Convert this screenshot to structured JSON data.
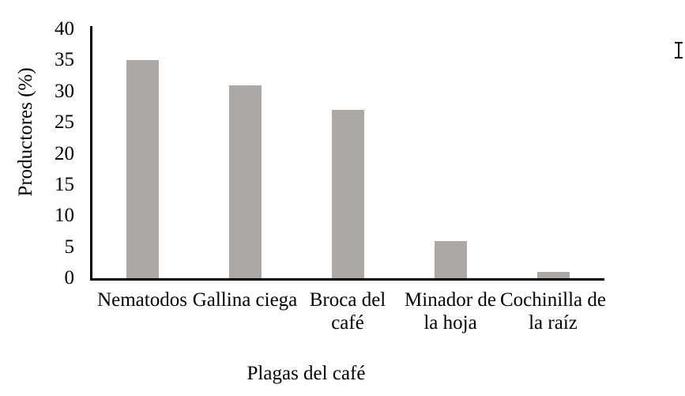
{
  "figure": {
    "background": "#ffffff"
  },
  "cursor": {
    "type": "text-ibeam-cursor"
  },
  "chart_data": {
    "type": "bar",
    "title": "",
    "categories": [
      "Nematodos",
      "Gallina ciega",
      "Broca del café",
      "Minador de la hoja",
      "Cochinilla de la raíz"
    ],
    "categories_lines": [
      [
        "Nematodos"
      ],
      [
        "Gallina ciega"
      ],
      [
        "Broca del",
        "café"
      ],
      [
        "Minador de",
        "la hoja"
      ],
      [
        "Cochinilla de",
        "la raíz"
      ]
    ],
    "values": [
      35,
      31,
      27,
      6,
      1
    ],
    "xlabel": "Plagas del café",
    "ylabel": "Productores (%)",
    "ylim": [
      0,
      40
    ],
    "yticks": [
      0,
      5,
      10,
      15,
      20,
      25,
      30,
      35,
      40
    ],
    "grid": false,
    "legend": false,
    "bar_color": "#aca8a6",
    "axis_color": "#000000",
    "text_color": "#000000"
  }
}
